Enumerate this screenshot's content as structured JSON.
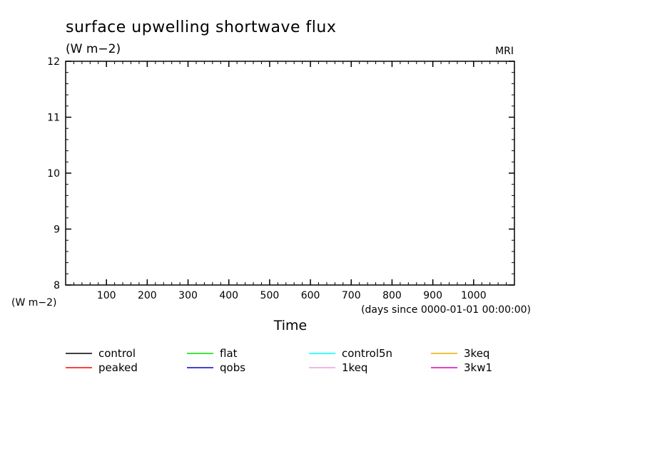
{
  "chart_data": {
    "type": "line",
    "title": "surface upwelling shortwave flux",
    "units_label": "(W m−2)",
    "source_label": "MRI",
    "ylabel_units": "(W m−2)",
    "xlabel": "Time",
    "x_units_note": "(days since 0000-01-01 00:00:00)",
    "xlim": [
      0,
      1100
    ],
    "ylim": [
      8,
      12
    ],
    "x_ticks": [
      100,
      200,
      300,
      400,
      500,
      600,
      700,
      800,
      900,
      1000
    ],
    "y_ticks": [
      8,
      9,
      10,
      11,
      12
    ],
    "x_minor_step": 20,
    "y_minor_step": 0.2,
    "grid": false,
    "legend_position": "bottom",
    "series": [
      {
        "name": "control",
        "color": "#000000",
        "x": [],
        "y": []
      },
      {
        "name": "peaked",
        "color": "#ff0000",
        "x": [],
        "y": []
      },
      {
        "name": "flat",
        "color": "#00dd00",
        "x": [],
        "y": []
      },
      {
        "name": "qobs",
        "color": "#0000cc",
        "x": [],
        "y": []
      },
      {
        "name": "control5n",
        "color": "#00ffff",
        "x": [],
        "y": []
      },
      {
        "name": "1keq",
        "color": "#e8a0e0",
        "x": [],
        "y": []
      },
      {
        "name": "3keq",
        "color": "#e8b000",
        "x": [],
        "y": []
      },
      {
        "name": "3kw1",
        "color": "#dd00bb",
        "x": [],
        "y": []
      }
    ]
  }
}
